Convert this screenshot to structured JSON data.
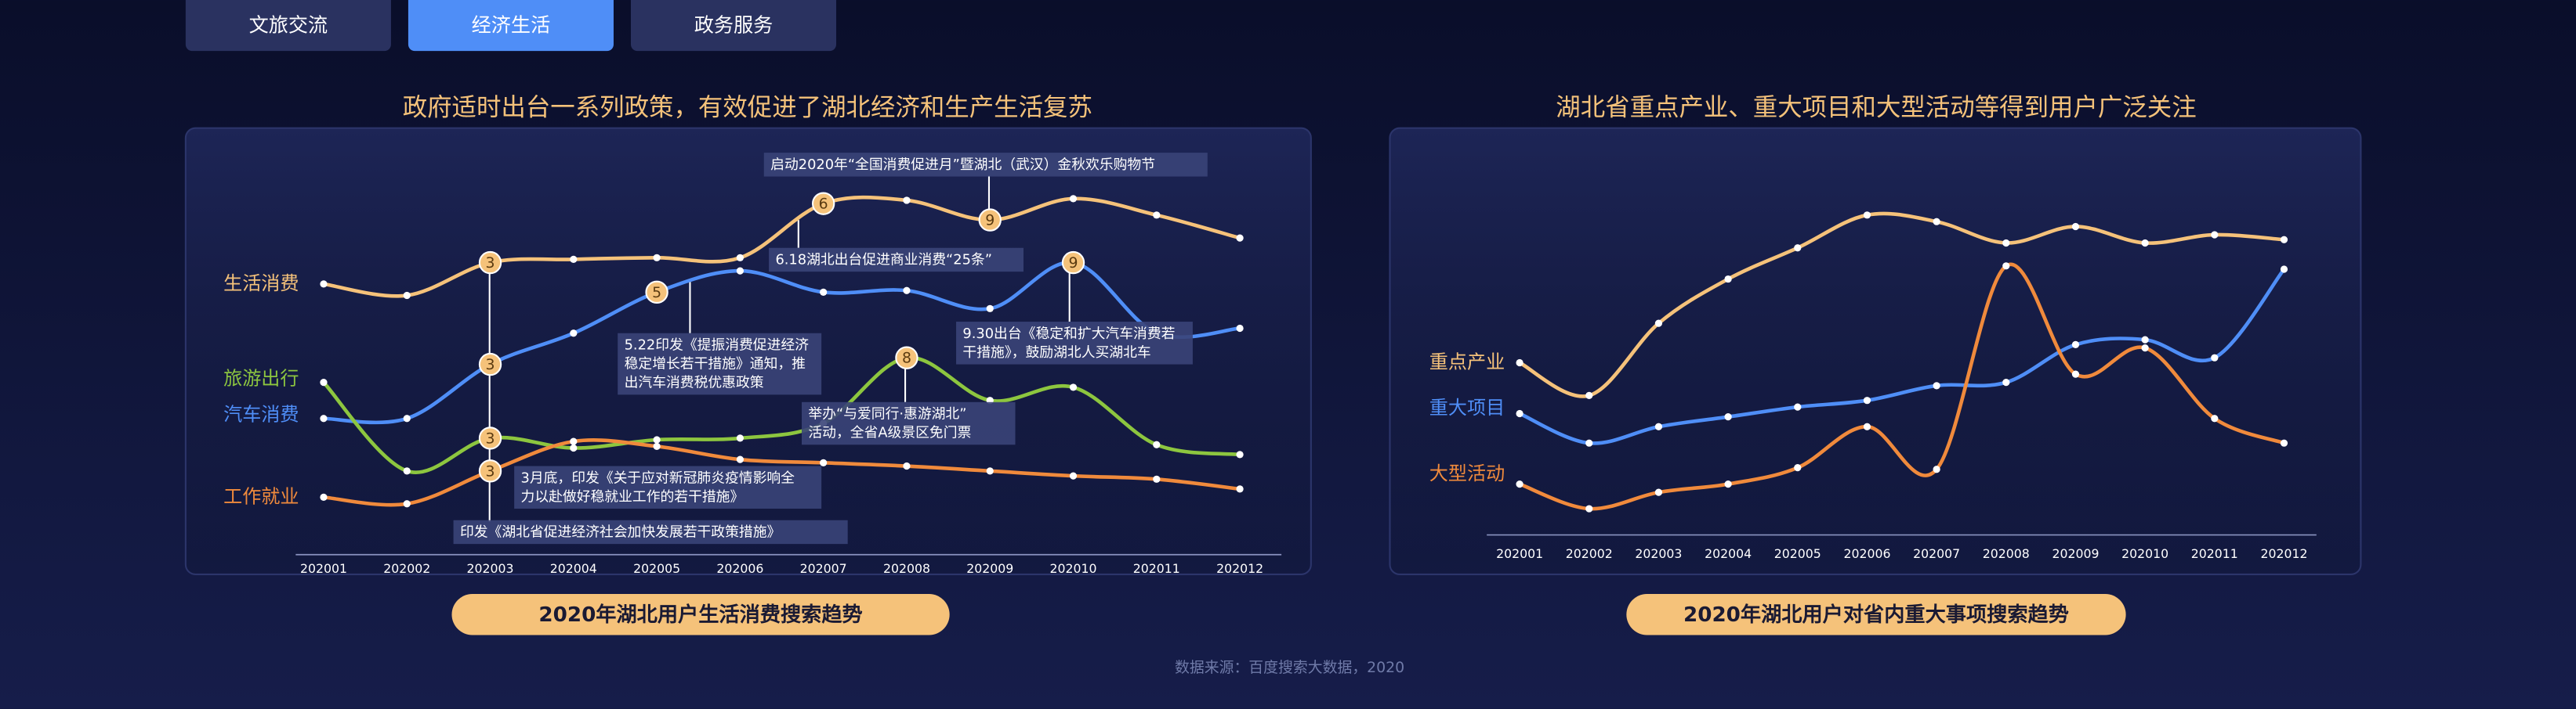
{
  "tabs": [
    "文旅交流",
    "经济生活",
    "政务服务"
  ],
  "active_tab": "经济生活",
  "source": "数据来源：百度搜索大数据，2020",
  "chart_data": [
    {
      "type": "line",
      "title": "政府适时出台一系列政策，有效促进了湖北经济和生产生活复苏",
      "caption": "2020年湖北用户生活消费搜索趋势",
      "categories": [
        "202001",
        "202002",
        "202003",
        "202004",
        "202005",
        "202006",
        "202007",
        "202008",
        "202009",
        "202010",
        "202011",
        "202012"
      ],
      "ylim": [
        0,
        260
      ],
      "series": [
        {
          "name": "生活消费",
          "color": "#f5c27a",
          "values": [
            167,
            160,
            180,
            182,
            183,
            183,
            216,
            218,
            206,
            219,
            209,
            195
          ]
        },
        {
          "name": "汽车消费",
          "color": "#4f8ef7",
          "values": [
            85,
            85,
            118,
            137,
            162,
            175,
            162,
            163,
            152,
            180,
            137,
            140
          ]
        },
        {
          "name": "旅游出行",
          "color": "#8dc63f",
          "values": [
            107,
            53,
            73,
            67,
            72,
            73,
            82,
            122,
            96,
            104,
            69,
            63
          ]
        },
        {
          "name": "工作就业",
          "color": "#f08a3c",
          "values": [
            37,
            33,
            53,
            71,
            68,
            60,
            58,
            56,
            53,
            50,
            48,
            42
          ]
        }
      ],
      "markers": [
        {
          "label": "3",
          "at": "202003",
          "series": "生活消费"
        },
        {
          "label": "3",
          "at": "202003",
          "series": "汽车消费"
        },
        {
          "label": "3",
          "at": "202003",
          "series": "旅游出行"
        },
        {
          "label": "3",
          "at": "202003",
          "series": "工作就业"
        },
        {
          "label": "5",
          "at": "202005",
          "series": "汽车消费"
        },
        {
          "label": "6",
          "at": "202007",
          "series": "生活消费"
        },
        {
          "label": "9",
          "at": "202009",
          "series": "生活消费"
        },
        {
          "label": "8",
          "at": "202008",
          "series": "旅游出行"
        },
        {
          "label": "9",
          "at": "202010",
          "series": "汽车消费"
        }
      ],
      "annotations": [
        {
          "lines": [
            "启动2020年“全国消费促进月”暨湖北（武汉）金秋欢乐购物节"
          ]
        },
        {
          "lines": [
            "6.18湖北出台促进商业消费“25条”"
          ]
        },
        {
          "lines": [
            "5.22印发《提振消费促进经济",
            "稳定增长若干措施》通知，推",
            "出汽车消费税优惠政策"
          ]
        },
        {
          "lines": [
            "9.30出台《稳定和扩大汽车消费若",
            "干措施》，鼓励湖北人买湖北车"
          ]
        },
        {
          "lines": [
            "举办“与爱同行·惠游湖北”",
            "活动，全省A级景区免门票"
          ]
        },
        {
          "lines": [
            "3月底，印发《关于应对新冠肺炎疫情影响全",
            "力以赴做好稳就业工作的若干措施》"
          ]
        },
        {
          "lines": [
            "印发《湖北省促进经济社会加快发展若干政策措施》"
          ]
        }
      ]
    },
    {
      "type": "line",
      "title": "湖北省重点产业、重大项目和大型活动等得到用户广泛关注",
      "caption": "2020年湖北用户对省内重大事项搜索趋势",
      "categories": [
        "202001",
        "202002",
        "202003",
        "202004",
        "202005",
        "202006",
        "202007",
        "202008",
        "202009",
        "202010",
        "202011",
        "202012"
      ],
      "ylim": [
        0,
        260
      ],
      "series": [
        {
          "name": "重点产业",
          "color": "#f5c27a",
          "values": [
            119,
            99,
            143,
            170,
            189,
            209,
            205,
            192,
            202,
            192,
            197,
            194
          ]
        },
        {
          "name": "重大项目",
          "color": "#4f8ef7",
          "values": [
            88,
            70,
            80,
            86,
            92,
            96,
            105,
            107,
            130,
            133,
            122,
            176
          ]
        },
        {
          "name": "大型活动",
          "color": "#f08a3c",
          "values": [
            45,
            30,
            40,
            45,
            55,
            80,
            54,
            178,
            112,
            128,
            85,
            70
          ]
        }
      ]
    }
  ]
}
